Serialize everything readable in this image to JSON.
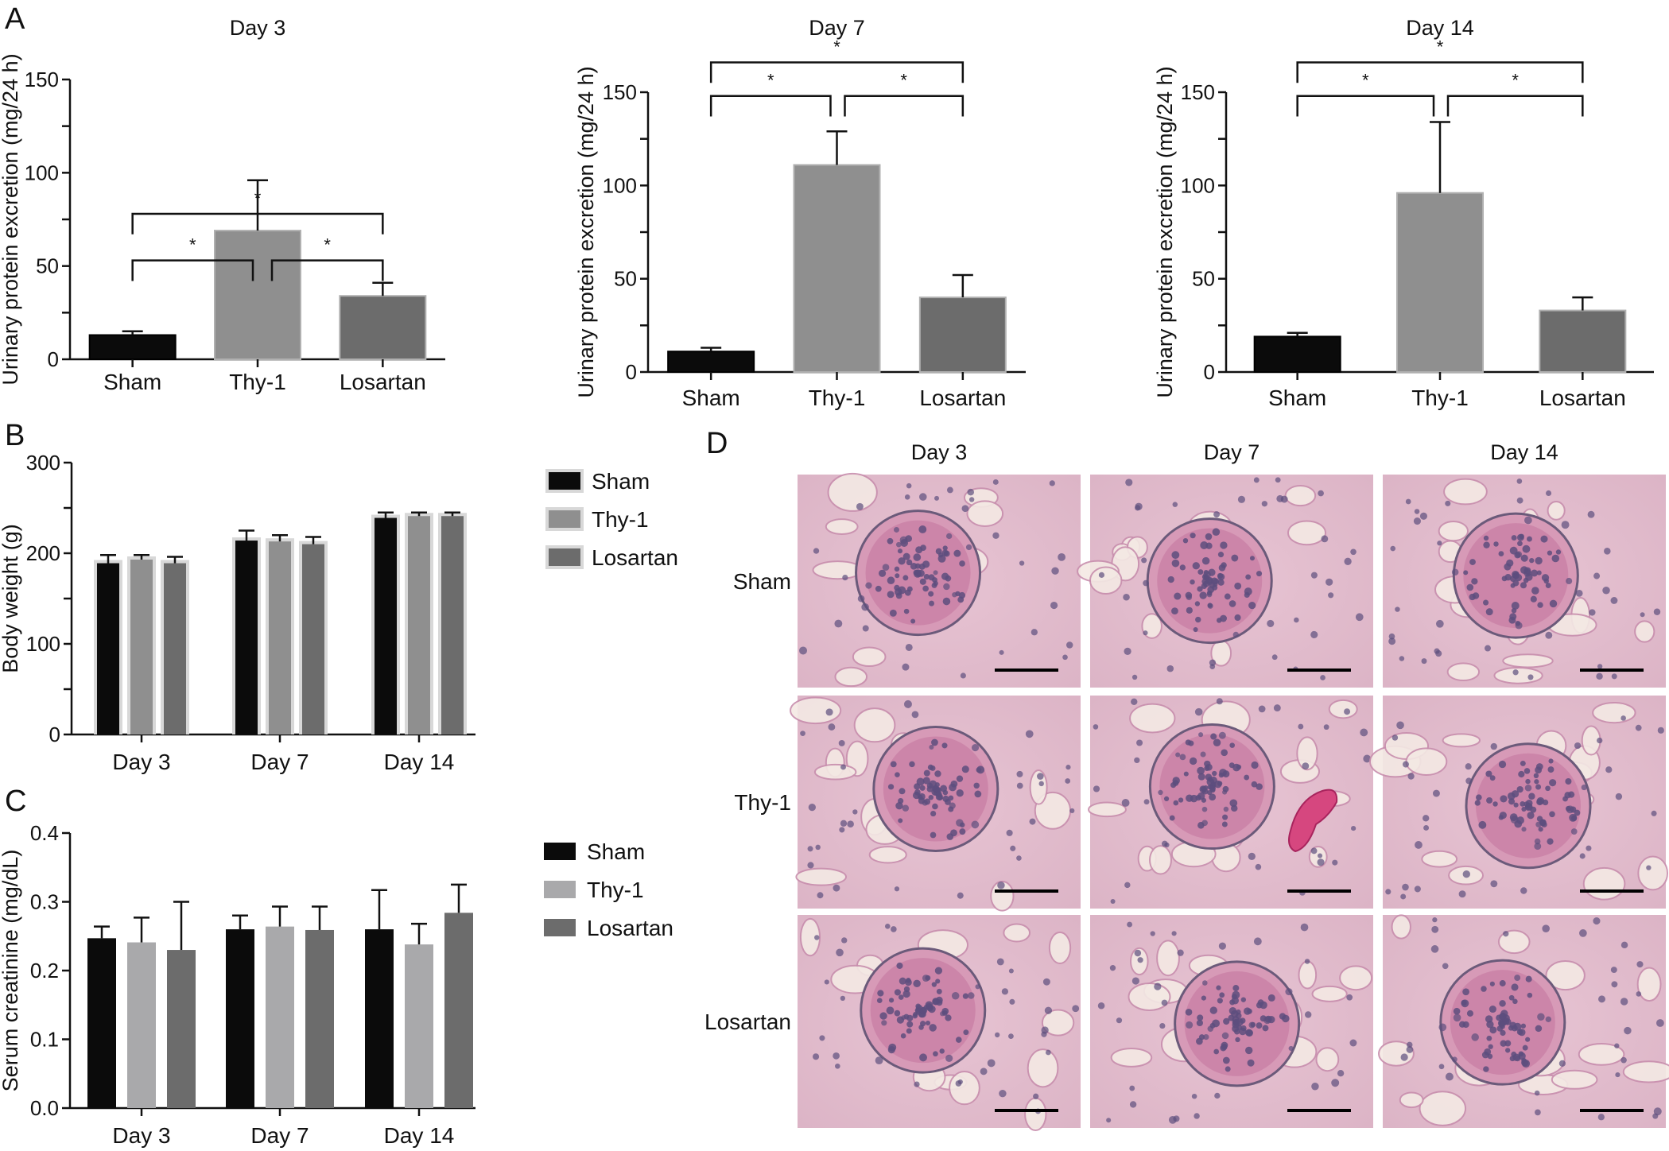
{
  "colors": {
    "sham": "#0b0b0b",
    "thy1": "#8f8f8f",
    "losartan": "#6c6c6c",
    "thy1_light": "#a9a9ab",
    "tissue_bg": "#e9c9d5",
    "tissue_stain": "#c6769c",
    "nuclei": "#5d4e7e"
  },
  "chart_data": [
    {
      "panel": "A",
      "type": "bar",
      "title": "Day 3",
      "ylabel": "Urinary protein excretion (mg/24 h)",
      "categories": [
        "Sham",
        "Thy-1",
        "Losartan"
      ],
      "values": [
        13,
        69,
        34
      ],
      "errors": [
        2,
        27,
        7
      ],
      "ylim": [
        0,
        150
      ],
      "yticks": [
        "0",
        "50",
        "100",
        "150"
      ],
      "annotations": [
        "*",
        "*",
        "*"
      ]
    },
    {
      "type": "bar",
      "title": "Day 7",
      "ylabel": "Urinary protein excretion (mg/24 h)",
      "categories": [
        "Sham",
        "Thy-1",
        "Losartan"
      ],
      "values": [
        11,
        111,
        40
      ],
      "errors": [
        2,
        18,
        12
      ],
      "ylim": [
        0,
        150
      ],
      "yticks": [
        "0",
        "50",
        "100",
        "150"
      ],
      "annotations": [
        "*",
        "*",
        "*"
      ]
    },
    {
      "type": "bar",
      "title": "Day 14",
      "ylabel": "Urinary protein excretion (mg/24 h)",
      "categories": [
        "Sham",
        "Thy-1",
        "Losartan"
      ],
      "values": [
        19,
        96,
        33
      ],
      "errors": [
        2,
        38,
        7
      ],
      "ylim": [
        0,
        150
      ],
      "yticks": [
        "0",
        "50",
        "100",
        "150"
      ],
      "annotations": [
        "*",
        "*",
        "*"
      ]
    },
    {
      "panel": "B",
      "type": "bar",
      "ylabel": "Body weight (g)",
      "categories": [
        "Day 3",
        "Day 7",
        "Day 14"
      ],
      "series": [
        {
          "name": "Sham",
          "values": [
            189,
            214,
            239
          ],
          "errors": [
            9,
            11,
            6
          ]
        },
        {
          "name": "Thy-1",
          "values": [
            193,
            213,
            241
          ],
          "errors": [
            5,
            7,
            4
          ]
        },
        {
          "name": "Losartan",
          "values": [
            189,
            210,
            241
          ],
          "errors": [
            7,
            8,
            4
          ]
        }
      ],
      "ylim": [
        0,
        300
      ],
      "yticks": [
        "0",
        "100",
        "200",
        "300"
      ],
      "legend": "right"
    },
    {
      "panel": "C",
      "type": "bar",
      "ylabel": "Serum creatinine (mg/dL)",
      "categories": [
        "Day 3",
        "Day 7",
        "Day 14"
      ],
      "series": [
        {
          "name": "Sham",
          "values": [
            0.247,
            0.26,
            0.26
          ],
          "errors": [
            0.017,
            0.02,
            0.057
          ]
        },
        {
          "name": "Thy-1",
          "values": [
            0.241,
            0.264,
            0.238
          ],
          "errors": [
            0.036,
            0.029,
            0.03
          ]
        },
        {
          "name": "Losartan",
          "values": [
            0.23,
            0.259,
            0.284
          ],
          "errors": [
            0.07,
            0.034,
            0.041
          ]
        }
      ],
      "ylim": [
        0,
        0.4
      ],
      "yticks": [
        "0.0",
        "0.1",
        "0.2",
        "0.3",
        "0.4"
      ],
      "legend": "right"
    }
  ],
  "micrographs": {
    "panel": "D",
    "columns": [
      "Day 3",
      "Day 7",
      "Day 14"
    ],
    "rows": [
      "Sham",
      "Thy-1",
      "Losartan"
    ]
  }
}
